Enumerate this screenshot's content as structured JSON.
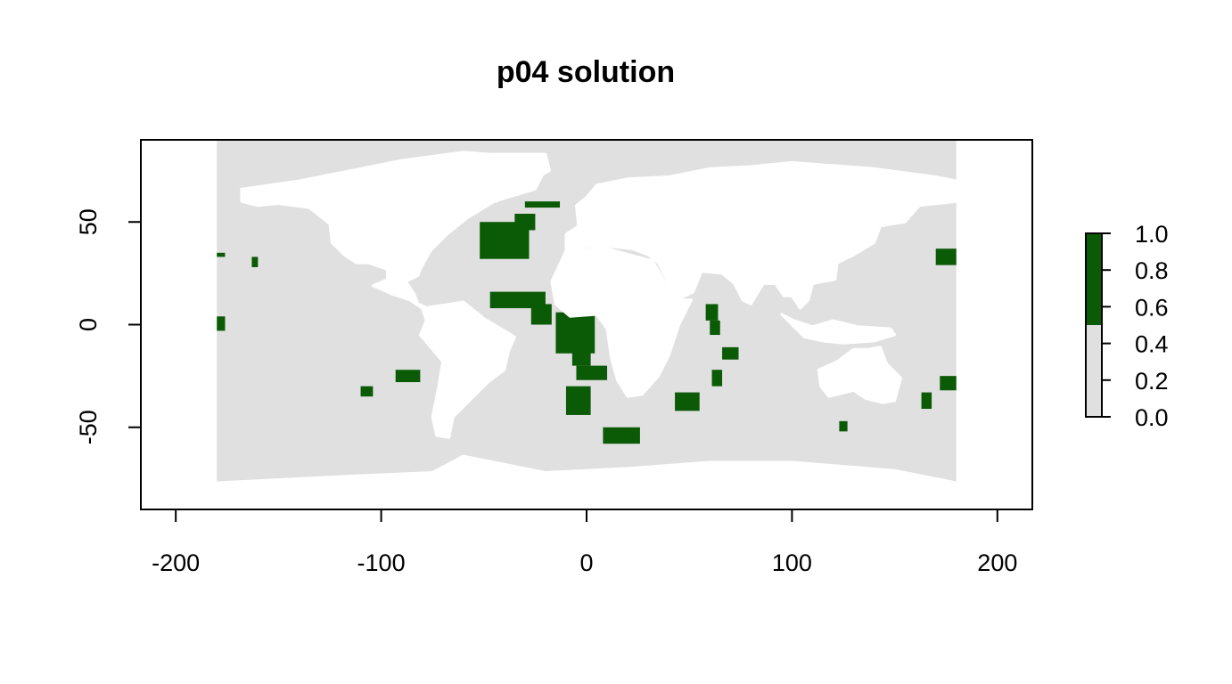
{
  "chart_data": {
    "type": "heatmap",
    "title": "p04 solution",
    "xlabel": "",
    "ylabel": "",
    "xlim": [
      -217,
      217
    ],
    "ylim": [
      -90,
      90
    ],
    "x_ticks": [
      -200,
      -100,
      0,
      100,
      200
    ],
    "x_tick_labels": [
      "-200",
      "-100",
      "0",
      "100",
      "200"
    ],
    "y_ticks": [
      -50,
      0,
      50
    ],
    "y_tick_labels": [
      "-50",
      "0",
      "50"
    ],
    "raster_extent": {
      "lon": [
        -180,
        180
      ],
      "lat": [
        -77,
        90
      ]
    },
    "legend": {
      "position": "right",
      "ticks": [
        0.0,
        0.2,
        0.4,
        0.6,
        0.8,
        1.0
      ],
      "tick_labels": [
        "0.0",
        "0.2",
        "0.4",
        "0.6",
        "0.8",
        "1.0"
      ],
      "classes": [
        {
          "range": [
            0.0,
            0.5
          ],
          "color": "#e0e0e0"
        },
        {
          "range": [
            0.5,
            1.0
          ],
          "color": "#0b5a06"
        }
      ]
    },
    "colors": {
      "not_selected": "#e0e0e0",
      "selected": "#0b5a06",
      "no_data": "#ffffff"
    },
    "selected_regions": [
      {
        "lon": [
          -52,
          -28
        ],
        "lat": [
          32,
          50
        ]
      },
      {
        "lon": [
          -35,
          -25
        ],
        "lat": [
          46,
          54
        ]
      },
      {
        "lon": [
          -30,
          -13
        ],
        "lat": [
          57,
          60
        ]
      },
      {
        "lon": [
          -47,
          -20
        ],
        "lat": [
          8,
          16
        ]
      },
      {
        "lon": [
          -27,
          -17
        ],
        "lat": [
          0,
          10
        ]
      },
      {
        "lon": [
          -15,
          4
        ],
        "lat": [
          -14,
          6
        ]
      },
      {
        "lon": [
          -7,
          2
        ],
        "lat": [
          -20,
          -12
        ]
      },
      {
        "lon": [
          -10,
          2
        ],
        "lat": [
          -44,
          -30
        ]
      },
      {
        "lon": [
          -5,
          10
        ],
        "lat": [
          -27,
          -20
        ]
      },
      {
        "lon": [
          8,
          26
        ],
        "lat": [
          -58,
          -50
        ]
      },
      {
        "lon": [
          43,
          55
        ],
        "lat": [
          -42,
          -33
        ]
      },
      {
        "lon": [
          58,
          64
        ],
        "lat": [
          2,
          10
        ]
      },
      {
        "lon": [
          60,
          65
        ],
        "lat": [
          -5,
          2
        ]
      },
      {
        "lon": [
          66,
          74
        ],
        "lat": [
          -17,
          -11
        ]
      },
      {
        "lon": [
          61,
          66
        ],
        "lat": [
          -30,
          -22
        ]
      },
      {
        "lon": [
          -180,
          -176
        ],
        "lat": [
          -3,
          4
        ]
      },
      {
        "lon": [
          -180,
          -176
        ],
        "lat": [
          33,
          35
        ]
      },
      {
        "lon": [
          -163,
          -160
        ],
        "lat": [
          28,
          33
        ]
      },
      {
        "lon": [
          -93,
          -81
        ],
        "lat": [
          -28,
          -22
        ]
      },
      {
        "lon": [
          -110,
          -104
        ],
        "lat": [
          -35,
          -30
        ]
      },
      {
        "lon": [
          170,
          180
        ],
        "lat": [
          29,
          37
        ]
      },
      {
        "lon": [
          163,
          168
        ],
        "lat": [
          -41,
          -33
        ]
      },
      {
        "lon": [
          172,
          180
        ],
        "lat": [
          -32,
          -25
        ]
      },
      {
        "lon": [
          123,
          127
        ],
        "lat": [
          -52,
          -47
        ]
      }
    ],
    "no_data_regions": [
      {
        "name": "north-america",
        "points": [
          [
            -168,
            66
          ],
          [
            -140,
            70
          ],
          [
            -110,
            76
          ],
          [
            -90,
            80
          ],
          [
            -60,
            84
          ],
          [
            -35,
            82
          ],
          [
            -20,
            76
          ],
          [
            -25,
            66
          ],
          [
            -45,
            60
          ],
          [
            -58,
            52
          ],
          [
            -68,
            44
          ],
          [
            -76,
            36
          ],
          [
            -81,
            27
          ],
          [
            -82,
            24
          ],
          [
            -88,
            21
          ],
          [
            -97,
            22
          ],
          [
            -97,
            27
          ],
          [
            -106,
            30
          ],
          [
            -112,
            30
          ],
          [
            -118,
            34
          ],
          [
            -124,
            40
          ],
          [
            -125,
            49
          ],
          [
            -135,
            57
          ],
          [
            -150,
            59
          ],
          [
            -160,
            58
          ],
          [
            -168,
            60
          ]
        ]
      },
      {
        "name": "central-america",
        "points": [
          [
            -88,
            21
          ],
          [
            -97,
            22
          ],
          [
            -104,
            19
          ],
          [
            -95,
            15
          ],
          [
            -86,
            12
          ],
          [
            -80,
            8
          ],
          [
            -77,
            8
          ],
          [
            -82,
            10
          ],
          [
            -84,
            15
          ]
        ]
      },
      {
        "name": "south-america",
        "points": [
          [
            -80,
            8
          ],
          [
            -60,
            11
          ],
          [
            -50,
            3
          ],
          [
            -35,
            -6
          ],
          [
            -38,
            -13
          ],
          [
            -40,
            -22
          ],
          [
            -48,
            -28
          ],
          [
            -58,
            -38
          ],
          [
            -65,
            -45
          ],
          [
            -67,
            -55
          ],
          [
            -73,
            -54
          ],
          [
            -75,
            -45
          ],
          [
            -72,
            -30
          ],
          [
            -70,
            -18
          ],
          [
            -81,
            -5
          ],
          [
            -78,
            2
          ]
        ]
      },
      {
        "name": "eurasia",
        "points": [
          [
            -10,
            36
          ],
          [
            -10,
            44
          ],
          [
            -4,
            48
          ],
          [
            -5,
            58
          ],
          [
            0,
            62
          ],
          [
            5,
            68
          ],
          [
            20,
            71
          ],
          [
            40,
            72
          ],
          [
            60,
            76
          ],
          [
            80,
            77
          ],
          [
            100,
            79
          ],
          [
            140,
            76
          ],
          [
            170,
            72
          ],
          [
            180,
            70
          ],
          [
            180,
            60
          ],
          [
            162,
            58
          ],
          [
            155,
            50
          ],
          [
            143,
            48
          ],
          [
            140,
            40
          ],
          [
            130,
            34
          ],
          [
            122,
            30
          ],
          [
            121,
            22
          ],
          [
            110,
            20
          ],
          [
            108,
            12
          ],
          [
            104,
            8
          ],
          [
            100,
            14
          ],
          [
            96,
            14
          ],
          [
            92,
            20
          ],
          [
            86,
            20
          ],
          [
            80,
            10
          ],
          [
            76,
            12
          ],
          [
            72,
            20
          ],
          [
            66,
            25
          ],
          [
            56,
            26
          ],
          [
            52,
            16
          ],
          [
            44,
            12
          ],
          [
            35,
            30
          ],
          [
            30,
            34
          ],
          [
            22,
            37
          ],
          [
            12,
            38
          ],
          [
            0,
            38
          ]
        ]
      },
      {
        "name": "africa",
        "points": [
          [
            -17,
            21
          ],
          [
            -10,
            36
          ],
          [
            10,
            37
          ],
          [
            32,
            31
          ],
          [
            34,
            28
          ],
          [
            43,
            12
          ],
          [
            51,
            12
          ],
          [
            45,
            0
          ],
          [
            40,
            -15
          ],
          [
            35,
            -25
          ],
          [
            27,
            -34
          ],
          [
            20,
            -35
          ],
          [
            15,
            -27
          ],
          [
            12,
            -16
          ],
          [
            10,
            -2
          ],
          [
            5,
            5
          ],
          [
            -8,
            4
          ],
          [
            -15,
            10
          ]
        ]
      },
      {
        "name": "australia",
        "points": [
          [
            113,
            -22
          ],
          [
            122,
            -18
          ],
          [
            130,
            -12
          ],
          [
            137,
            -12
          ],
          [
            143,
            -11
          ],
          [
            146,
            -19
          ],
          [
            153,
            -26
          ],
          [
            150,
            -37
          ],
          [
            144,
            -38
          ],
          [
            136,
            -36
          ],
          [
            130,
            -32
          ],
          [
            118,
            -35
          ],
          [
            114,
            -30
          ]
        ]
      },
      {
        "name": "indonesia",
        "points": [
          [
            95,
            5
          ],
          [
            106,
            -6
          ],
          [
            115,
            -8
          ],
          [
            125,
            -9
          ],
          [
            140,
            -8
          ],
          [
            150,
            -5
          ],
          [
            148,
            -2
          ],
          [
            132,
            -1
          ],
          [
            120,
            2
          ],
          [
            110,
            -1
          ],
          [
            101,
            2
          ]
        ]
      },
      {
        "name": "greenland",
        "points": [
          [
            -55,
            83
          ],
          [
            -20,
            83
          ],
          [
            -18,
            75
          ],
          [
            -35,
            66
          ],
          [
            -44,
            60
          ],
          [
            -52,
            64
          ],
          [
            -58,
            76
          ]
        ]
      },
      {
        "name": "antarctica",
        "points": [
          [
            -180,
            -77
          ],
          [
            -180,
            -90
          ],
          [
            180,
            -90
          ],
          [
            180,
            -77
          ],
          [
            150,
            -71
          ],
          [
            100,
            -67
          ],
          [
            60,
            -67
          ],
          [
            20,
            -70
          ],
          [
            -20,
            -72
          ],
          [
            -60,
            -64
          ],
          [
            -75,
            -72
          ],
          [
            -120,
            -74
          ]
        ]
      }
    ]
  }
}
